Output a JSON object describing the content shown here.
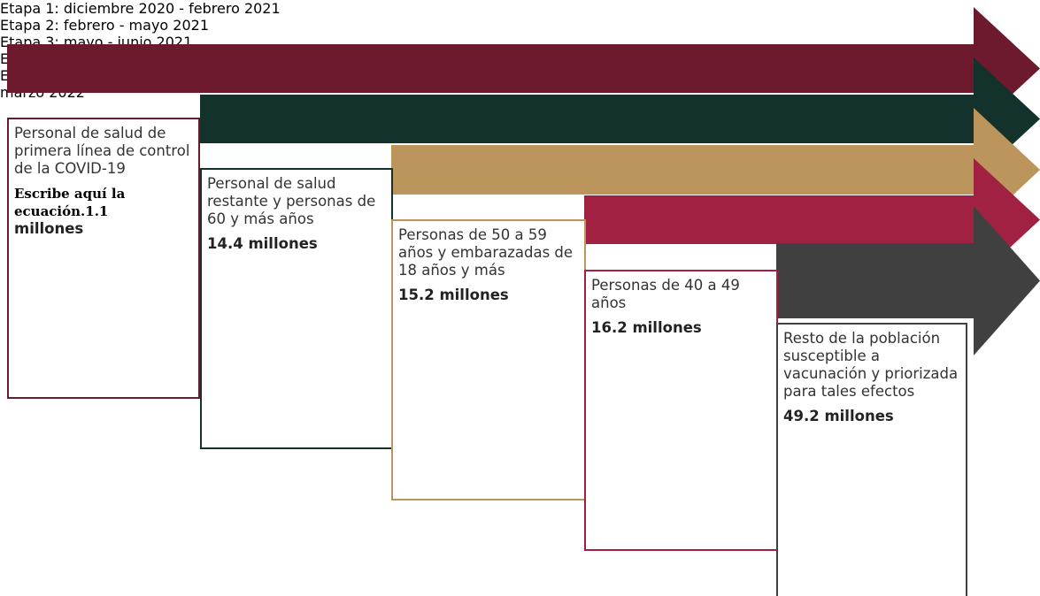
{
  "stages": [
    {
      "title": "Etapa 1: diciembre 2020 - febrero 2021",
      "description": "Personal de salud de primera línea de control de la COVID-19",
      "equation_placeholder": "Escribe aquí la ecuación.1.1",
      "amount": "millones"
    },
    {
      "title": "Etapa 2: febrero - mayo 2021",
      "description": "Personal de salud restante y personas de 60 y más años",
      "amount": "14.4 millones"
    },
    {
      "title": "Etapa 3: mayo - junio 2021",
      "description": "Personas de 50 a 59 años y embarazadas de 18 años y más",
      "amount": "15.2 millones"
    },
    {
      "title": "Etapa 4: junio- julio 2021",
      "description": "Personas de 40 a 49 años",
      "amount": "16.2 millones"
    },
    {
      "title": "Etapa 5: julio 2021 marzo 2022",
      "description": "Resto de la población susceptible a vacunación y priorizada para tales efectos",
      "amount": "49.2 millones"
    }
  ]
}
